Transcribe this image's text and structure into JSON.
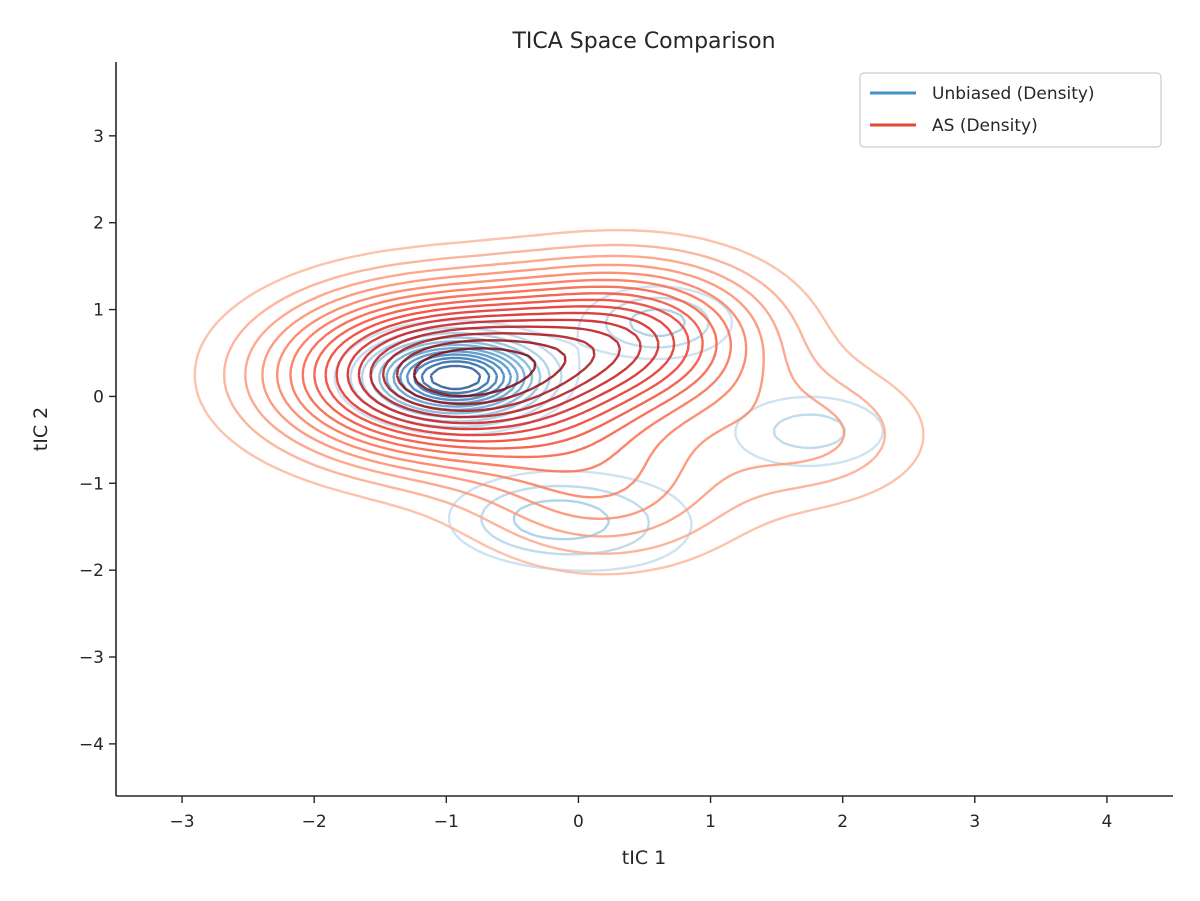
{
  "chart_data": {
    "type": "contour",
    "title": "TICA Space Comparison",
    "xlabel": "tIC 1",
    "ylabel": "tIC 2",
    "xlim": [
      -3.5,
      4.5
    ],
    "ylim": [
      -4.6,
      3.85
    ],
    "xticks": [
      -3,
      -2,
      -1,
      0,
      1,
      2,
      3,
      4
    ],
    "xtick_labels": [
      "−3",
      "−2",
      "−1",
      "0",
      "1",
      "2",
      "3",
      "4"
    ],
    "yticks": [
      -4,
      -3,
      -2,
      -1,
      0,
      1,
      2,
      3
    ],
    "ytick_labels": [
      "−4",
      "−3",
      "−2",
      "−1",
      "0",
      "1",
      "2",
      "3"
    ],
    "grid": false,
    "legend_position": "top-right",
    "series": [
      {
        "name": "Unbiased (Density)",
        "color": "#4292c6",
        "colormap": "Blues",
        "peaks": [
          {
            "x": -0.93,
            "y": 0.22,
            "sx": 0.42,
            "sy": 0.3,
            "w": 1.0
          },
          {
            "x": 0.6,
            "y": 0.85,
            "sx": 0.38,
            "sy": 0.28,
            "w": 0.28
          },
          {
            "x": 1.75,
            "y": -0.4,
            "sx": 0.45,
            "sy": 0.32,
            "w": 0.2
          },
          {
            "x": -0.3,
            "y": -1.4,
            "sx": 0.5,
            "sy": 0.35,
            "w": 0.22
          },
          {
            "x": 0.35,
            "y": -1.5,
            "sx": 0.55,
            "sy": 0.45,
            "w": 0.12
          }
        ],
        "levels": 12
      },
      {
        "name": "AS (Density)",
        "color": "#e34a33",
        "colormap": "Reds",
        "peaks": [
          {
            "x": -1.0,
            "y": 0.25,
            "sx": 0.85,
            "sy": 0.65,
            "w": 1.0
          },
          {
            "x": 0.45,
            "y": 0.7,
            "sx": 0.7,
            "sy": 0.6,
            "w": 0.55
          },
          {
            "x": 0.2,
            "y": -1.1,
            "sx": 0.7,
            "sy": 0.6,
            "w": 0.28
          },
          {
            "x": 1.8,
            "y": -0.45,
            "sx": 0.6,
            "sy": 0.55,
            "w": 0.2
          }
        ],
        "levels": 16
      }
    ]
  }
}
